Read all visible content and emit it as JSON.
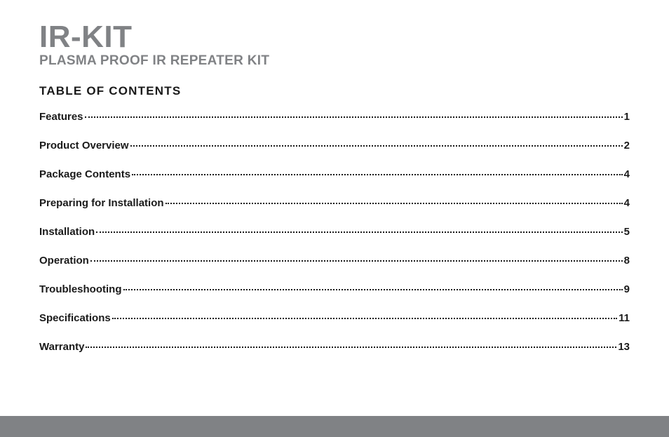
{
  "document": {
    "title": "IR-KIT",
    "subtitle": "PLASMA PROOF IR REPEATER KIT",
    "toc_heading": "TABLE OF CONTENTS",
    "title_color": "#808285",
    "subtitle_color": "#808285",
    "text_color": "#1a1a1a",
    "background_color": "#ffffff",
    "footer_bar_color": "#808285",
    "title_fontsize": 44,
    "subtitle_fontsize": 19,
    "toc_heading_fontsize": 17,
    "toc_item_fontsize": 15,
    "toc": [
      {
        "label": "Features",
        "page": "1"
      },
      {
        "label": "Product Overview",
        "page": "2"
      },
      {
        "label": "Package Contents",
        "page": "4"
      },
      {
        "label": "Preparing for Installation",
        "page": "4"
      },
      {
        "label": "Installation",
        "page": "5"
      },
      {
        "label": "Operation",
        "page": "8"
      },
      {
        "label": "Troubleshooting",
        "page": "9"
      },
      {
        "label": "Specifications",
        "page": "11"
      },
      {
        "label": "Warranty",
        "page": "13"
      }
    ]
  }
}
